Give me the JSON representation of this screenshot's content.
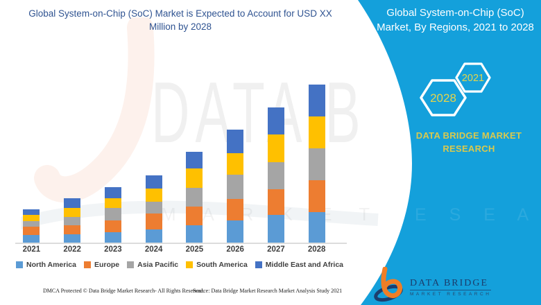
{
  "header": {
    "title": "Global System-on-Chip (SoC) Market is Expected to Account for USD XX Million by 2028"
  },
  "chart_data": {
    "type": "bar",
    "stacked": true,
    "title": "Global System-on-Chip (SoC) Market is Expected to Account for USD XX Million by 2028",
    "xlabel": "",
    "ylabel": "",
    "units": "relative height units (chart labeled USD XX Million; no numeric axis shown)",
    "grid": false,
    "legend_position": "bottom",
    "categories": [
      "2021",
      "2022",
      "2023",
      "2024",
      "2025",
      "2026",
      "2027",
      "2028"
    ],
    "series": [
      {
        "name": "North America",
        "color": "#5B9BD5",
        "values": [
          11,
          12,
          15,
          19,
          25,
          32,
          40,
          44
        ]
      },
      {
        "name": "Europe",
        "color": "#ED7D31",
        "values": [
          12,
          13,
          17,
          23,
          27,
          31,
          37,
          46
        ]
      },
      {
        "name": "Asia Pacific",
        "color": "#A5A5A5",
        "values": [
          8,
          12,
          18,
          17,
          27,
          35,
          39,
          46
        ]
      },
      {
        "name": "South America",
        "color": "#FFC000",
        "values": [
          9,
          13,
          14,
          19,
          28,
          31,
          40,
          46
        ]
      },
      {
        "name": "Middle East and Africa",
        "color": "#4472C4",
        "values": [
          8,
          14,
          16,
          19,
          24,
          34,
          39,
          46
        ]
      }
    ]
  },
  "watermark": {
    "big_text": "DATA B",
    "spaced_text_left": "M A R K E T",
    "spaced_text_right": "E S E A R C H"
  },
  "footer": {
    "left": "DMCA Protected © Data Bridge Market Research- All Rights Reserved.",
    "right": "Source: Data Bridge Market Research Market Analysis Study 2021"
  },
  "sidebar": {
    "title": "Global System-on-Chip (SoC) Market, By Regions, 2021 to 2028",
    "hexagon_big_label": "2028",
    "hexagon_small_label": "2021",
    "brand": "DATA BRIDGE MARKET RESEARCH",
    "logo_name": "DATA BRIDGE",
    "logo_tagline": "MARKET RESEARCH",
    "colors": {
      "background": "#14A0DB",
      "accent_yellow": "#E5D44B",
      "hexagon_outline": "#FFFFFF",
      "logo_orange": "#F07E26",
      "logo_navy": "#1C3E6E"
    }
  },
  "colors": {
    "title_text": "#2F5391",
    "axis_line": "#DCDCDC",
    "label_text": "#3F3F3F"
  }
}
